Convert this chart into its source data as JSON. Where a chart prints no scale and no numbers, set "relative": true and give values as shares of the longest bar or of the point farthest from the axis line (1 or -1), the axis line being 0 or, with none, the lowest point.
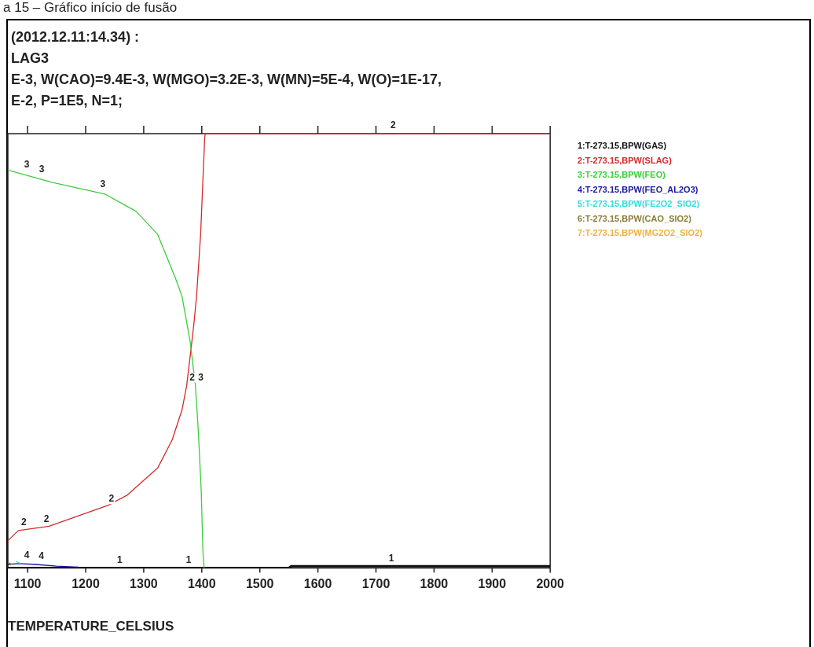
{
  "chart_data": {
    "type": "line",
    "relative": true,
    "title": "a 15 – Gráfico início de fusão",
    "xlabel": "TEMPERATURE_CELSIUS",
    "xlim": [
      1066,
      2000
    ],
    "xticks": [
      1100,
      1200,
      1300,
      1400,
      1500,
      1600,
      1700,
      1800,
      1900,
      2000
    ],
    "grid": false,
    "legend": "right",
    "marker": "none",
    "line_style": "solid",
    "series": [
      {
        "name": "1:T-273.15,BPW(GAS)",
        "color": "#111111",
        "x": [
          1066,
          1550,
          1554,
          2000
        ],
        "values": [
          0,
          0,
          0.004,
          0.004
        ]
      },
      {
        "name": "2:T-273.15,BPW(SLAG)",
        "color": "#d42a2a",
        "x": [
          1066,
          1084,
          1137,
          1240,
          1272,
          1324,
          1349,
          1366,
          1374,
          1380,
          1386,
          1391,
          1398,
          1405,
          1406,
          2000
        ],
        "values": [
          0.0625,
          0.086,
          0.096,
          0.145,
          0.168,
          0.23,
          0.295,
          0.364,
          0.42,
          0.4875,
          0.557,
          0.625,
          0.768,
          0.99,
          1,
          1
        ]
      },
      {
        "name": "3:T-273.15,BPW(FEO)",
        "color": "#3ccc3c",
        "x": [
          1066,
          1143,
          1233,
          1287,
          1324,
          1355,
          1366,
          1380,
          1389,
          1394,
          1399,
          1402,
          1404
        ],
        "values": [
          0.916,
          0.8875,
          0.861,
          0.821,
          0.768,
          0.666,
          0.625,
          0.521,
          0.42,
          0.316,
          0.179,
          0.0375,
          0
        ]
      },
      {
        "name": "4:T-273.15,BPW(FEO_AL2O3)",
        "color": "#1a1aa0",
        "x": [
          1066,
          1085,
          1114,
          1150,
          1188
        ],
        "values": [
          0.008,
          0.01,
          0.008,
          0.004,
          0.002
        ]
      },
      {
        "name": "5:T-273.15,BPW(FE2O2_SIO2)",
        "color": "#33dddd",
        "x": [
          1080,
          1088
        ],
        "values": [
          0.015,
          0.01
        ]
      },
      {
        "name": "6:T-273.15,BPW(CAO_SIO2)",
        "color": "#8b7d3a",
        "x": [
          1066,
          1075
        ],
        "values": [
          0.012,
          0.008
        ]
      },
      {
        "name": "7:T-273.15,BPW(MG2O2_SIO2)",
        "color": "#f0b040"
      }
    ],
    "annotations": [
      "(2012.12.11:14.34) :",
      "LAG3",
      "E-3, W(CAO)=9.4E-3, W(MGO)=3.2E-3, W(MN)=5E-4, W(O)=1E-17,",
      "E-2, P=1E5, N=1;",
      {
        "text": "2",
        "x": 1720,
        "y": 1
      },
      {
        "text": "2",
        "x": 1084,
        "y": 0.086
      },
      {
        "text": "2",
        "x": 1123,
        "y": 0.093
      },
      {
        "text": "2",
        "x": 1235,
        "y": 0.14
      },
      {
        "text": "2",
        "x": 1374,
        "y": 0.42
      },
      {
        "text": "3",
        "x": 1089,
        "y": 0.91
      },
      {
        "text": "3",
        "x": 1115,
        "y": 0.9
      },
      {
        "text": "3",
        "x": 1220,
        "y": 0.865
      },
      {
        "text": "3",
        "x": 1389,
        "y": 0.42
      },
      {
        "text": "1",
        "x": 1249,
        "y": 0
      },
      {
        "text": "1",
        "x": 1368,
        "y": 0
      },
      {
        "text": "1",
        "x": 1717,
        "y": 0.004
      },
      {
        "text": "4",
        "x": 1089,
        "y": 0.01
      },
      {
        "text": "4",
        "x": 1114,
        "y": 0.008
      }
    ]
  }
}
